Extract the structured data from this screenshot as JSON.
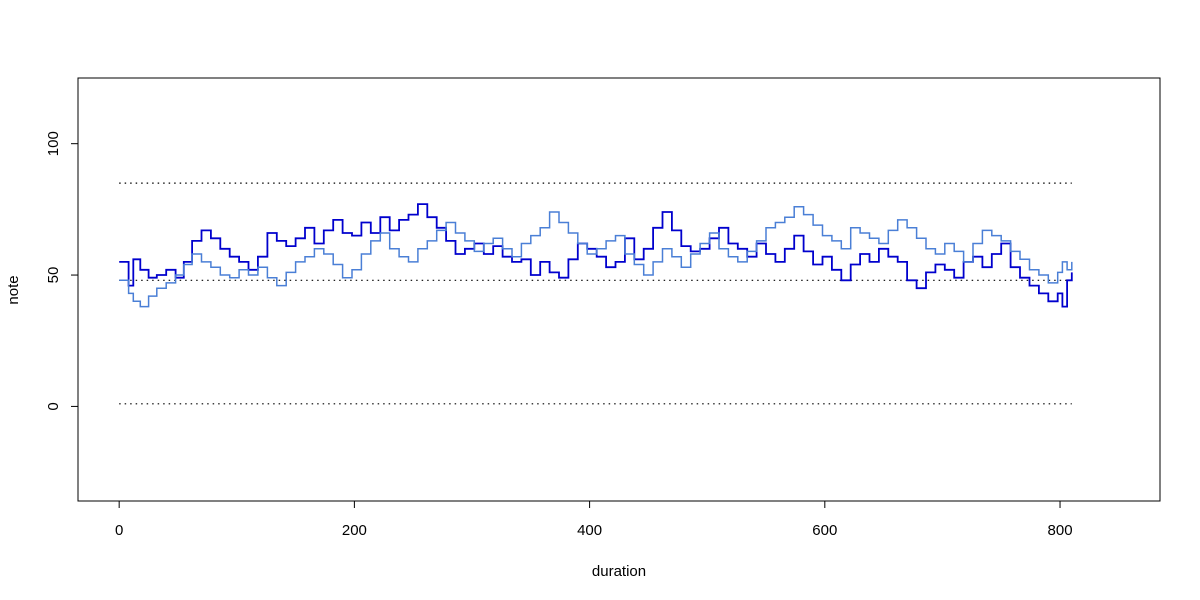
{
  "chart_data": {
    "type": "line",
    "step": true,
    "xlabel": "duration",
    "ylabel": "note",
    "xlim": [
      -35,
      885
    ],
    "ylim": [
      -36,
      125
    ],
    "x_ticks": [
      0,
      200,
      400,
      600,
      800
    ],
    "y_ticks": [
      0,
      50,
      100
    ],
    "reference_lines": [
      1,
      48,
      85
    ],
    "grid": false,
    "colors": {
      "series_dark": "#0000CD",
      "series_light": "#4A7FD6",
      "reference": "#000000"
    },
    "series": [
      {
        "color": "dark",
        "x": [
          0,
          8,
          12,
          18,
          25,
          32,
          40,
          48,
          55,
          62,
          70,
          78,
          86,
          94,
          102,
          110,
          118,
          126,
          134,
          142,
          150,
          158,
          166,
          174,
          182,
          190,
          198,
          206,
          214,
          222,
          230,
          238,
          246,
          254,
          262,
          270,
          278,
          286,
          294,
          302,
          310,
          318,
          326,
          334,
          342,
          350,
          358,
          366,
          374,
          382,
          390,
          398,
          406,
          414,
          422,
          430,
          438,
          446,
          454,
          462,
          470,
          478,
          486,
          494,
          502,
          510,
          518,
          526,
          534,
          542,
          550,
          558,
          566,
          574,
          582,
          590,
          598,
          606,
          614,
          622,
          630,
          638,
          646,
          654,
          662,
          670,
          678,
          686,
          694,
          702,
          710,
          718,
          726,
          734,
          742,
          750,
          758,
          766,
          774,
          782,
          790,
          798,
          802,
          806,
          810
        ],
        "y": [
          55,
          46,
          56,
          52,
          49,
          50,
          52,
          49,
          55,
          63,
          67,
          64,
          60,
          57,
          55,
          52,
          57,
          66,
          63,
          61,
          64,
          68,
          62,
          67,
          71,
          66,
          65,
          70,
          66,
          72,
          67,
          71,
          73,
          77,
          72,
          68,
          63,
          58,
          60,
          62,
          58,
          61,
          57,
          55,
          56,
          50,
          55,
          51,
          49,
          56,
          62,
          60,
          57,
          53,
          55,
          64,
          56,
          60,
          68,
          74,
          67,
          61,
          59,
          60,
          64,
          68,
          62,
          60,
          57,
          62,
          58,
          55,
          60,
          65,
          59,
          54,
          57,
          52,
          48,
          54,
          58,
          55,
          60,
          57,
          55,
          48,
          45,
          51,
          54,
          52,
          49,
          55,
          57,
          53,
          58,
          62,
          53,
          49,
          46,
          43,
          40,
          43,
          38,
          48,
          51
        ]
      },
      {
        "color": "light",
        "x": [
          0,
          8,
          12,
          18,
          25,
          32,
          40,
          48,
          55,
          62,
          70,
          78,
          86,
          94,
          102,
          110,
          118,
          126,
          134,
          142,
          150,
          158,
          166,
          174,
          182,
          190,
          198,
          206,
          214,
          222,
          230,
          238,
          246,
          254,
          262,
          270,
          278,
          286,
          294,
          302,
          310,
          318,
          326,
          334,
          342,
          350,
          358,
          366,
          374,
          382,
          390,
          398,
          406,
          414,
          422,
          430,
          438,
          446,
          454,
          462,
          470,
          478,
          486,
          494,
          502,
          510,
          518,
          526,
          534,
          542,
          550,
          558,
          566,
          574,
          582,
          590,
          598,
          606,
          614,
          622,
          630,
          638,
          646,
          654,
          662,
          670,
          678,
          686,
          694,
          702,
          710,
          718,
          726,
          734,
          742,
          750,
          758,
          766,
          774,
          782,
          790,
          798,
          802,
          806,
          810
        ],
        "y": [
          48,
          43,
          40,
          38,
          42,
          45,
          47,
          50,
          54,
          58,
          55,
          53,
          50,
          49,
          52,
          50,
          53,
          49,
          46,
          51,
          55,
          57,
          60,
          58,
          54,
          49,
          52,
          58,
          63,
          66,
          60,
          57,
          55,
          60,
          63,
          67,
          70,
          66,
          63,
          59,
          62,
          64,
          60,
          57,
          62,
          65,
          68,
          74,
          70,
          66,
          62,
          58,
          60,
          63,
          65,
          58,
          54,
          50,
          55,
          60,
          57,
          53,
          58,
          62,
          66,
          60,
          57,
          55,
          59,
          63,
          68,
          70,
          72,
          76,
          73,
          69,
          65,
          63,
          60,
          68,
          66,
          64,
          62,
          67,
          71,
          68,
          64,
          60,
          58,
          62,
          59,
          55,
          62,
          67,
          65,
          63,
          59,
          56,
          52,
          50,
          47,
          51,
          55,
          52,
          55
        ]
      }
    ]
  }
}
